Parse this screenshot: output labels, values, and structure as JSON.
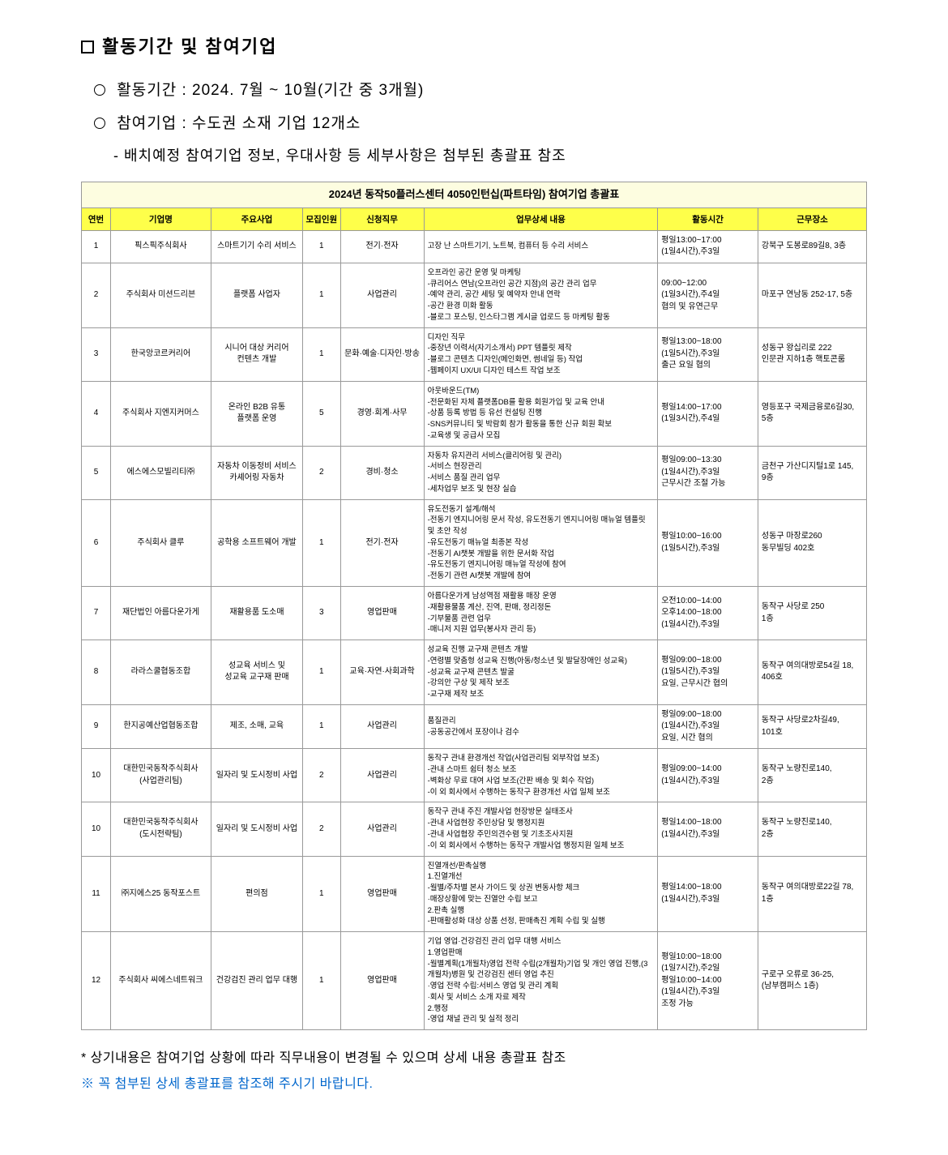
{
  "header": {
    "section_title": "활동기간 및 참여기업",
    "line1": " 활동기간 : 2024. 7월 ~ 10월(기간 중 3개월)",
    "line2": " 참여기업 : 수도권 소재 기업 12개소",
    "subline": "- 배치예정 참여기업 정보, 우대사항 등 세부사항은 첨부된 총괄표 참조"
  },
  "table": {
    "title": "2024년 동작50플러스센터 4050인턴십(파트타임) 참여기업 총괄표",
    "columns": [
      "연번",
      "기업명",
      "주요사업",
      "모집인원",
      "신청직무",
      "업무상세 내용",
      "활동시간",
      "근무장소"
    ],
    "rows": [
      {
        "no": "1",
        "company": "픽스픽주식회사",
        "biz": "스마트기기 수리 서비스",
        "cnt": "1",
        "job": "전기·전자",
        "detail": "고장 난 스마트기기, 노트북, 컴퓨터 등 수리 서비스",
        "time": "평일13:00~17:00\n(1일4시간),주3일",
        "place": "강북구 도봉로89길8, 3층"
      },
      {
        "no": "2",
        "company": "주식회사 미션드리븐",
        "biz": "플랫폼 사업자",
        "cnt": "1",
        "job": "사업관리",
        "detail": "오프라인 공간 운영 및 마케팅\n-큐리어스 연남(오프라인 공간 지점)의 공간 관리 업무\n-예약 관리, 공간 세팅 및 예약자 안내 연락\n-공간 환경 미화 활동\n-블로그 포스팅, 인스타그램 게시글 업로드 등 마케팅 활동",
        "time": "09:00~12:00\n(1일3시간),주4일\n협의 및 유연근무",
        "place": "마포구 연남동 252-17, 5층"
      },
      {
        "no": "3",
        "company": "한국앙코르커리어",
        "biz": "시니어 대상 커리어\n컨텐츠 개발",
        "cnt": "1",
        "job": "문화·예술·디자인·방송",
        "detail": "디자인 직무\n-중장년 이력서(자기소개서) PPT 템플릿 제작\n-블로그 콘텐츠 디자인(메인화면, 썸네일 등) 작업\n-웹페이지 UX/UI 디자인 테스트 작업 보조",
        "time": "평일13:00~18:00\n(1일5시간),주3일\n출근 요일 협의",
        "place": "성동구 왕십리로 222\n인문관 지하1층 핵토콘룸"
      },
      {
        "no": "4",
        "company": "주식회사 지엔지커머스",
        "biz": "온라인 B2B 유통\n플랫폼 운영",
        "cnt": "5",
        "job": "경영·회계·사무",
        "detail": "아웃바운드(TM)\n-전문화된 자체 플랫폼DB를 활용 회원가입 및 교육 안내\n-상품 등록 방법 등 유선 컨설팅 진행\n-SNS커뮤니티 및 박람회 참가 활동을 통한 신규 회원 확보\n-교육생 및 공급사 모집",
        "time": "평일14:00~17:00\n(1일3시간),주4일",
        "place": "영등포구 국제금융로6길30,\n5층"
      },
      {
        "no": "5",
        "company": "에스에스모빌리티㈜",
        "biz": "자동차 이동정비 서비스\n카셰어링 자동차",
        "cnt": "2",
        "job": "경비·청소",
        "detail": "자동차 유지관리 서비스(클리어링 및 관리)\n-서비스 현장관리\n-서비스 품질 관리 업무\n-세차업무 보조 및 현장 실습",
        "time": "평일09:00~13:30\n(1일4시간),주3일\n근무시간 조절 가능",
        "place": "금천구 가산디지털1로 145,\n9층"
      },
      {
        "no": "6",
        "company": "주식회사 클루",
        "biz": "공학용 소프트웨어 개발",
        "cnt": "1",
        "job": "전기·전자",
        "detail": "유도전동기 설계/해석\n-전동기 엔지니어링 문서 작성, 유도전동기 엔지니어링 매뉴얼 템플릿 및 초안 작성\n-유도전동기 매뉴얼 최종본 작성\n-전동기 AI챗봇 개발을 위한 문서화 작업\n-유도전동기 엔지니어링 매뉴얼 작성에 참여\n-전동기 관련 AI챗봇 개발에 참여",
        "time": "평일10:00~16:00\n(1일5시간),주3일",
        "place": "성동구 마장로260\n동무빌딩 402호"
      },
      {
        "no": "7",
        "company": "재단법인 아름다운가게",
        "biz": "재활용품 도소매",
        "cnt": "3",
        "job": "영업판매",
        "detail": "아름다운가게 남성역점 재활용 매장 운영\n-재활용물품 계산, 진역, 판매, 정리정돈\n-기부물품 관련 업무\n-매니저 지원 업무(봉사자 관리 등)",
        "time": "오전10:00~14:00\n오후14:00~18:00\n(1일4시간),주3일",
        "place": "동작구 사당로 250\n1층"
      },
      {
        "no": "8",
        "company": "라라스쿨협동조합",
        "biz": "성교육 서비스 및\n성교육 교구재 판매",
        "cnt": "1",
        "job": "교육·자연·사회과학",
        "detail": "성교육 진행 교구재 콘텐츠 개발\n-연령별 맞춤형 성교육 진행(아동/청소년 및 발달장애인 성교육)\n-성교육 교구재 콘텐츠 발굴\n-강의안 구상 및 제작 보조\n-교구재 제작 보조",
        "time": "평일09:00~18:00\n(1일5시간),주3일\n요일, 근무시간 협의",
        "place": "동작구 여의대방로54길 18,\n406호"
      },
      {
        "no": "9",
        "company": "한지공예산업협동조합",
        "biz": "제조, 소매, 교육",
        "cnt": "1",
        "job": "사업관리",
        "detail": "품질관리\n-공동공간에서 포장이나 검수",
        "time": "평일09:00~18:00\n(1일4시간),주3일\n요일, 시간 협의",
        "place": "동작구 사당로2차길49,\n101호"
      },
      {
        "no": "10",
        "company": "대한민국동작주식회사\n(사업관리팀)",
        "biz": "일자리 및 도시정비 사업",
        "cnt": "2",
        "job": "사업관리",
        "detail": "동작구 관내 환경개선 작업(사업관리팀 외부작업 보조)\n-관내 스마트 쉼터 청소 보조\n-벽화상 무료 대여 사업 보조(간판 배송 및 회수 작업)\n-이 외 회사에서 수행하는 동작구 환경개선 사업 일체 보조",
        "time": "평일09:00~14:00\n(1일4시간),주3일",
        "place": "동작구 노량진로140,\n2층"
      },
      {
        "no": "10b",
        "noDisplay": "10",
        "company": "대한민국동작주식회사\n(도시전략팀)",
        "biz": "일자리 및 도시정비 사업",
        "cnt": "2",
        "job": "사업관리",
        "detail": "동작구 관내 주진 개발사업 현장방문 실태조사\n-관내 사업현장 주민상담 및 행정지원\n-관내 사업협장 주민의견수렴 및 기초조사지원\n-이 외 회사에서 수행하는 동작구 개발사업 행정지원 일체 보조",
        "time": "평일14:00~18:00\n(1일4시간),주3일",
        "place": "동작구 노량진로140,\n2층"
      },
      {
        "no": "11",
        "company": "㈜지에스25 동작포스트",
        "biz": "편의점",
        "cnt": "1",
        "job": "영업판매",
        "detail": "진열개선/판촉실행\n1.진열개선\n-월별/주차별 본사 가이드 및 상권 변동사항 체크\n·매장상황에 맞는 진열안 수립 보고\n2.판촉 실행\n-판매활성화 대상 상품 선정, 판매촉진 계획 수립 및 실행",
        "time": "평일14:00~18:00\n(1일4시간),주3일",
        "place": "동작구 여의대방로22길 78,\n1층"
      },
      {
        "no": "12",
        "company": "주식회사 씨에스네트워크",
        "biz": "건강검진 관리 업무 대행",
        "cnt": "1",
        "job": "영업판매",
        "detail": "기업 영업·건강검진 관리 업무 대행 서비스\n1.영업판매\n-월별계획(1개월차)영업 전략 수립(2개월차)기업 및 개인 영업 진행,(3개월차)병원 및 건강검진 센터 영업 추진\n·영업 전략 수립:서비스 영업 및 관리 계획\n·회사 및 서비스 소개 자료 제작\n2.행정\n-영업 채널 관리 및 실적 정리",
        "time": "평일10:00~18:00\n(1일7시간),주2일\n평일10:00~14:00\n(1일4시간),주3일\n조정 가능",
        "place": "구로구 오류로 36-25,\n(남부캠퍼스 1층)"
      }
    ]
  },
  "footer": {
    "note1": "* 상기내용은 참여기업 상황에 따라 직무내용이 변경될 수 있으며 상세 내용 총괄표 참조",
    "note2": "※ 꼭 첨부된 상세 총괄표를 참조해 주시기 바랍니다."
  }
}
